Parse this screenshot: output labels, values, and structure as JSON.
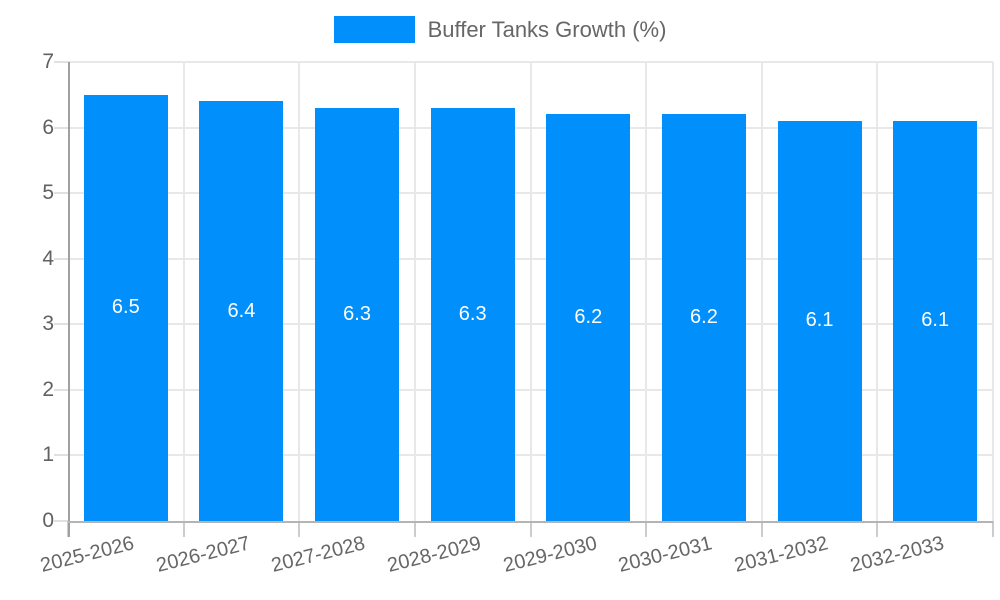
{
  "legend": {
    "label": "Buffer Tanks Growth (%)"
  },
  "chart_data": {
    "type": "bar",
    "title": "Buffer Tanks Growth (%)",
    "categories": [
      "2025-2026",
      "2026-2027",
      "2027-2028",
      "2028-2029",
      "2029-2030",
      "2030-2031",
      "2031-2032",
      "2032-2033"
    ],
    "values": [
      6.5,
      6.4,
      6.3,
      6.3,
      6.2,
      6.2,
      6.1,
      6.1
    ],
    "value_labels": [
      "6.5",
      "6.4",
      "6.3",
      "6.3",
      "6.2",
      "6.2",
      "6.1",
      "6.1"
    ],
    "xlabel": "",
    "ylabel": "",
    "ylim": [
      0,
      7
    ],
    "yticks": [
      0,
      1,
      2,
      3,
      4,
      5,
      6,
      7
    ],
    "grid": true,
    "legend_position": "top-center",
    "bar_color": "#008FFB",
    "value_label_color": "#ffffff",
    "tick_text_color": "#616161",
    "legend_text_color": "#666666"
  }
}
